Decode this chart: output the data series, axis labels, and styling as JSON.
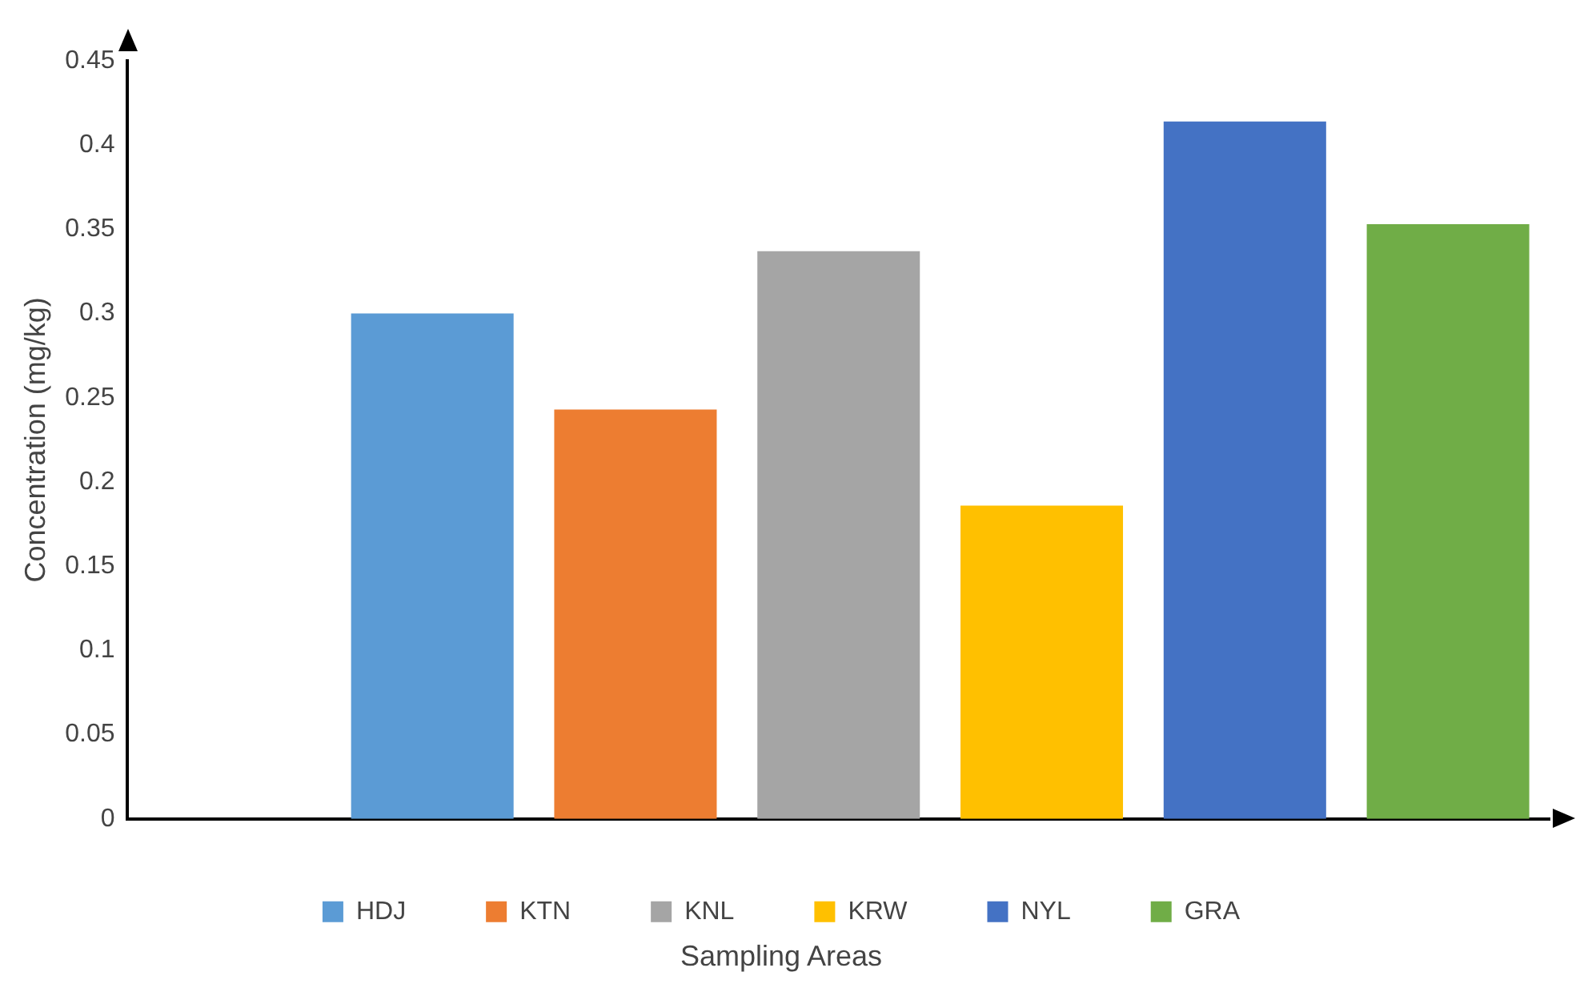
{
  "chart_data": {
    "type": "bar",
    "xlabel": "Sampling Areas",
    "ylabel": "Concentration (mg/kg)",
    "categories": [
      null,
      null,
      null,
      null,
      null,
      null,
      null
    ],
    "series": [
      {
        "name": "HDJ",
        "color": "#5b9bd5",
        "values": [
          null,
          0.3,
          null,
          null,
          null,
          null,
          null
        ]
      },
      {
        "name": "KTN",
        "color": "#ed7d31",
        "values": [
          null,
          null,
          0.243,
          null,
          null,
          null,
          null
        ]
      },
      {
        "name": "KNL",
        "color": "#a5a5a5",
        "values": [
          null,
          null,
          null,
          0.337,
          null,
          null,
          null
        ]
      },
      {
        "name": "KRW",
        "color": "#ffc000",
        "values": [
          null,
          null,
          null,
          null,
          0.186,
          null,
          null
        ]
      },
      {
        "name": "NYL",
        "color": "#4472c4",
        "values": [
          null,
          null,
          null,
          null,
          null,
          0.414,
          null
        ]
      },
      {
        "name": "GRA",
        "color": "#70ad47",
        "values": [
          null,
          null,
          null,
          null,
          null,
          null,
          0.353
        ]
      }
    ],
    "ylim": [
      0,
      0.45
    ],
    "yticks": [
      0,
      0.05,
      0.1,
      0.15,
      0.2,
      0.25,
      0.3,
      0.35,
      0.4,
      0.45
    ],
    "grid": false,
    "legend": "bottom"
  }
}
